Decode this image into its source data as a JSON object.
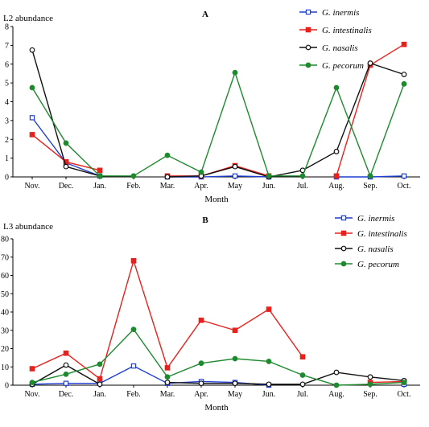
{
  "chart_data": [
    {
      "type": "line",
      "title": "A",
      "ylabel": "L2 abundance",
      "xlabel": "Month",
      "ylim": [
        0,
        8
      ],
      "yticks": [
        0,
        1,
        2,
        3,
        4,
        5,
        6,
        7,
        8
      ],
      "categories": [
        "Nov.",
        "Dec.",
        "Jan.",
        "Feb.",
        "Mar.",
        "Apr.",
        "May",
        "Jun.",
        "Jul.",
        "Aug.",
        "Sep.",
        "Oct."
      ],
      "legend_position": "top-right",
      "series": [
        {
          "name": "G. inermis",
          "color": "#1f3fd0",
          "marker": "square-open",
          "values": [
            3.15,
            0.75,
            0.05,
            null,
            0.0,
            0.0,
            0.05,
            0.0,
            null,
            0.0,
            0.0,
            0.05
          ]
        },
        {
          "name": "G. intestinalis",
          "color": "#e8211c",
          "marker": "square-filled",
          "values": [
            2.25,
            0.8,
            0.35,
            null,
            0.05,
            0.05,
            0.6,
            0.05,
            null,
            0.05,
            5.95,
            7.05
          ]
        },
        {
          "name": "G. nasalis",
          "color": "#111111",
          "marker": "circle-open",
          "values": [
            6.75,
            0.55,
            0.05,
            null,
            0.0,
            0.05,
            0.55,
            0.0,
            0.35,
            1.35,
            6.05,
            5.45
          ]
        },
        {
          "name": "G. pecorum",
          "color": "#1e8a2e",
          "marker": "circle-filled",
          "values": [
            4.75,
            1.8,
            0.05,
            0.05,
            1.15,
            0.25,
            5.55,
            0.05,
            0.05,
            4.75,
            0.05,
            4.95
          ]
        }
      ]
    },
    {
      "type": "line",
      "title": "B",
      "ylabel": "L3 abundance",
      "xlabel": "Month",
      "ylim": [
        0,
        80
      ],
      "yticks": [
        0,
        10,
        20,
        30,
        40,
        50,
        60,
        70,
        80
      ],
      "categories": [
        "Nov.",
        "Dec.",
        "Jan.",
        "Feb.",
        "Mar.",
        "Apr.",
        "May",
        "Jun.",
        "Jul.",
        "Aug.",
        "Sep.",
        "Oct."
      ],
      "legend_position": "top-right",
      "series": [
        {
          "name": "G. inermis",
          "color": "#1f3fd0",
          "marker": "square-open",
          "values": [
            0.5,
            1.0,
            1.0,
            10.5,
            1.0,
            2.0,
            1.5,
            0.0,
            null,
            null,
            null,
            0.5
          ]
        },
        {
          "name": "G. intestinalis",
          "color": "#e8211c",
          "marker": "square-filled",
          "values": [
            9.0,
            17.5,
            3.5,
            68.0,
            9.5,
            35.5,
            30.0,
            41.5,
            15.5,
            null,
            1.5,
            2.0
          ]
        },
        {
          "name": "G. nasalis",
          "color": "#111111",
          "marker": "circle-open",
          "values": [
            0.5,
            11.0,
            0.5,
            null,
            1.5,
            1.0,
            1.0,
            0.5,
            0.5,
            7.0,
            4.5,
            2.5
          ]
        },
        {
          "name": "G. pecorum",
          "color": "#1e8a2e",
          "marker": "circle-filled",
          "values": [
            1.5,
            6.0,
            11.5,
            30.5,
            4.5,
            12.0,
            14.5,
            13.0,
            5.5,
            0.0,
            0.5,
            1.5
          ]
        }
      ]
    }
  ]
}
